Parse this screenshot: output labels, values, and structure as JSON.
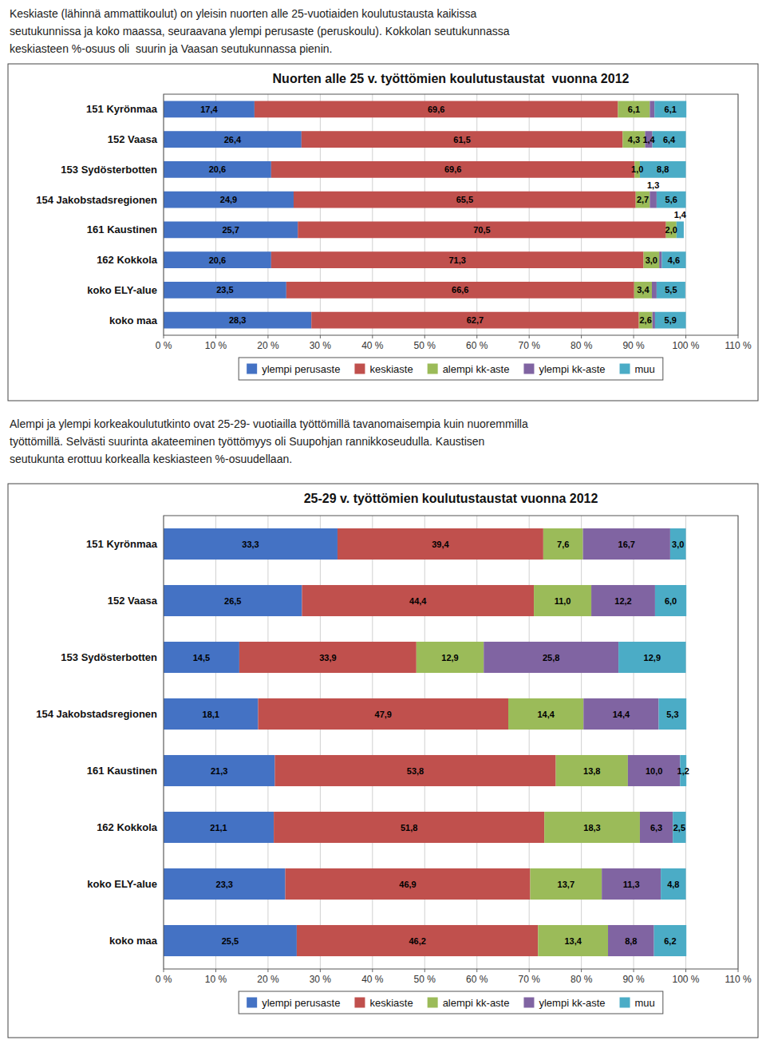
{
  "chart_data": [
    {
      "type": "bar",
      "orientation": "horizontal",
      "stacked": true,
      "data_labels": true,
      "grid": true,
      "legend": "bottom",
      "title": "Nuorten alle 25 v. työttömien koulutustaustat  vuonna 2012",
      "annotations": [
        "Keskiaste (lähinnä ammattikoulut) on yleisin nuorten alle 25-vuotiaiden koulutustausta kaikissa\nseutukunnissa ja koko maassa, seuraavana ylempi perusaste (peruskoulu). Kokkolan seutukunnassa\nkeskiasteen %-osuus oli  suurin ja Vaasan seutukunnassa pienin."
      ],
      "categories": [
        "151 Kyrönmaa",
        "152 Vaasa",
        "153 Sydösterbotten",
        "154 Jakobstadsregionen",
        "161 Kaustinen",
        "162 Kokkola",
        "koko ELY-alue",
        "koko maa"
      ],
      "series": [
        {
          "name": "ylempi perusaste",
          "color": "#4472C4",
          "values": [
            17.4,
            26.4,
            20.6,
            24.9,
            25.7,
            20.6,
            23.5,
            28.3
          ],
          "value_labels": [
            "17,4",
            "26,4",
            "20,6",
            "24,9",
            "25,7",
            "20,6",
            "23,5",
            "28,3"
          ]
        },
        {
          "name": "keskiaste",
          "color": "#C0504D",
          "values": [
            69.6,
            61.5,
            69.6,
            65.5,
            70.5,
            71.3,
            66.6,
            62.7
          ],
          "value_labels": [
            "69,6",
            "61,5",
            "69,6",
            "65,5",
            "70,5",
            "71,3",
            "66,6",
            "62,7"
          ]
        },
        {
          "name": "alempi kk-aste",
          "color": "#9BBB59",
          "values": [
            6.1,
            4.3,
            1.0,
            2.7,
            2.0,
            3.0,
            3.4,
            2.6
          ],
          "value_labels": [
            "6,1",
            "4,3",
            "1,0",
            "2,7",
            "2,0",
            "3,0",
            "3,4",
            "2,6"
          ]
        },
        {
          "name": "ylempi kk-aste",
          "color": "#8064A2",
          "values": [
            0.9,
            1.4,
            0.0,
            1.3,
            0.0,
            0.5,
            0.9,
            0.5
          ],
          "value_labels": [
            null,
            "1,4",
            null,
            "1,3",
            null,
            null,
            null,
            null
          ]
        },
        {
          "name": "muu",
          "color": "#4BACC6",
          "values": [
            6.1,
            6.4,
            8.8,
            5.6,
            1.4,
            4.6,
            5.5,
            5.9
          ],
          "value_labels": [
            "6,1",
            "6,4",
            "8,8",
            "5,6",
            "1,4",
            "4,6",
            "5,5",
            "5,9"
          ]
        }
      ],
      "xlim": [
        0,
        110
      ],
      "xticks": [
        {
          "value": 0,
          "label": "0 %"
        },
        {
          "value": 10,
          "label": "10 %"
        },
        {
          "value": 20,
          "label": "20 %"
        },
        {
          "value": 30,
          "label": "30 %"
        },
        {
          "value": 40,
          "label": "40 %"
        },
        {
          "value": 50,
          "label": "50 %"
        },
        {
          "value": 60,
          "label": "60 %"
        },
        {
          "value": 70,
          "label": "70 %"
        },
        {
          "value": 80,
          "label": "80 %"
        },
        {
          "value": 90,
          "label": "90 %"
        },
        {
          "value": 100,
          "label": "100 %"
        },
        {
          "value": 110,
          "label": "110 %"
        }
      ]
    },
    {
      "type": "bar",
      "orientation": "horizontal",
      "stacked": true,
      "data_labels": true,
      "grid": true,
      "legend": "bottom",
      "title": "25-29 v. työttömien koulutustaustat vuonna 2012",
      "annotations": [
        "Alempi ja ylempi korkeakoulututkinto ovat 25-29- vuotiailla työttömillä tavanomaisempia kuin nuoremmilla\ntyöttömillä. Selvästi suurinta akateeminen työttömyys oli Suupohjan rannikkoseudulla. Kaustisen\nseutukunta erottuu korkealla keskiasteen %-osuudellaan."
      ],
      "categories": [
        "151 Kyrönmaa",
        "152 Vaasa",
        "153 Sydösterbotten",
        "154 Jakobstadsregionen",
        "161 Kaustinen",
        "162 Kokkola",
        "koko ELY-alue",
        "koko maa"
      ],
      "series": [
        {
          "name": "ylempi perusaste",
          "color": "#4472C4",
          "values": [
            33.3,
            26.5,
            14.5,
            18.1,
            21.3,
            21.1,
            23.3,
            25.5
          ],
          "value_labels": [
            "33,3",
            "26,5",
            "14,5",
            "18,1",
            "21,3",
            "21,1",
            "23,3",
            "25,5"
          ]
        },
        {
          "name": "keskiaste",
          "color": "#C0504D",
          "values": [
            39.4,
            44.4,
            33.9,
            47.9,
            53.8,
            51.8,
            46.9,
            46.2
          ],
          "value_labels": [
            "39,4",
            "44,4",
            "33,9",
            "47,9",
            "53,8",
            "51,8",
            "46,9",
            "46,2"
          ]
        },
        {
          "name": "alempi kk-aste",
          "color": "#9BBB59",
          "values": [
            7.6,
            11.0,
            12.9,
            14.4,
            13.8,
            18.3,
            13.7,
            13.4
          ],
          "value_labels": [
            "7,6",
            "11,0",
            "12,9",
            "14,4",
            "13,8",
            "18,3",
            "13,7",
            "13,4"
          ]
        },
        {
          "name": "ylempi kk-aste",
          "color": "#8064A2",
          "values": [
            16.7,
            12.2,
            25.8,
            14.4,
            10.0,
            6.3,
            11.3,
            8.8
          ],
          "value_labels": [
            "16,7",
            "12,2",
            "25,8",
            "14,4",
            "10,0",
            "6,3",
            "11,3",
            "8,8"
          ]
        },
        {
          "name": "muu",
          "color": "#4BACC6",
          "values": [
            3.0,
            6.0,
            12.9,
            5.3,
            1.2,
            2.5,
            4.8,
            6.2
          ],
          "value_labels": [
            "3,0",
            "6,0",
            "12,9",
            "5,3",
            "1,2",
            "2,5",
            "4,8",
            "6,2"
          ]
        }
      ],
      "xlim": [
        0,
        110
      ],
      "xticks": [
        {
          "value": 0,
          "label": "0 %"
        },
        {
          "value": 10,
          "label": "10 %"
        },
        {
          "value": 20,
          "label": "20 %"
        },
        {
          "value": 30,
          "label": "30 %"
        },
        {
          "value": 40,
          "label": "40 %"
        },
        {
          "value": 50,
          "label": "50 %"
        },
        {
          "value": 60,
          "label": "60 %"
        },
        {
          "value": 70,
          "label": "70 %"
        },
        {
          "value": 80,
          "label": "80 %"
        },
        {
          "value": 90,
          "label": "90 %"
        },
        {
          "value": 100,
          "label": "100 %"
        },
        {
          "value": 110,
          "label": "110 %"
        }
      ]
    }
  ]
}
